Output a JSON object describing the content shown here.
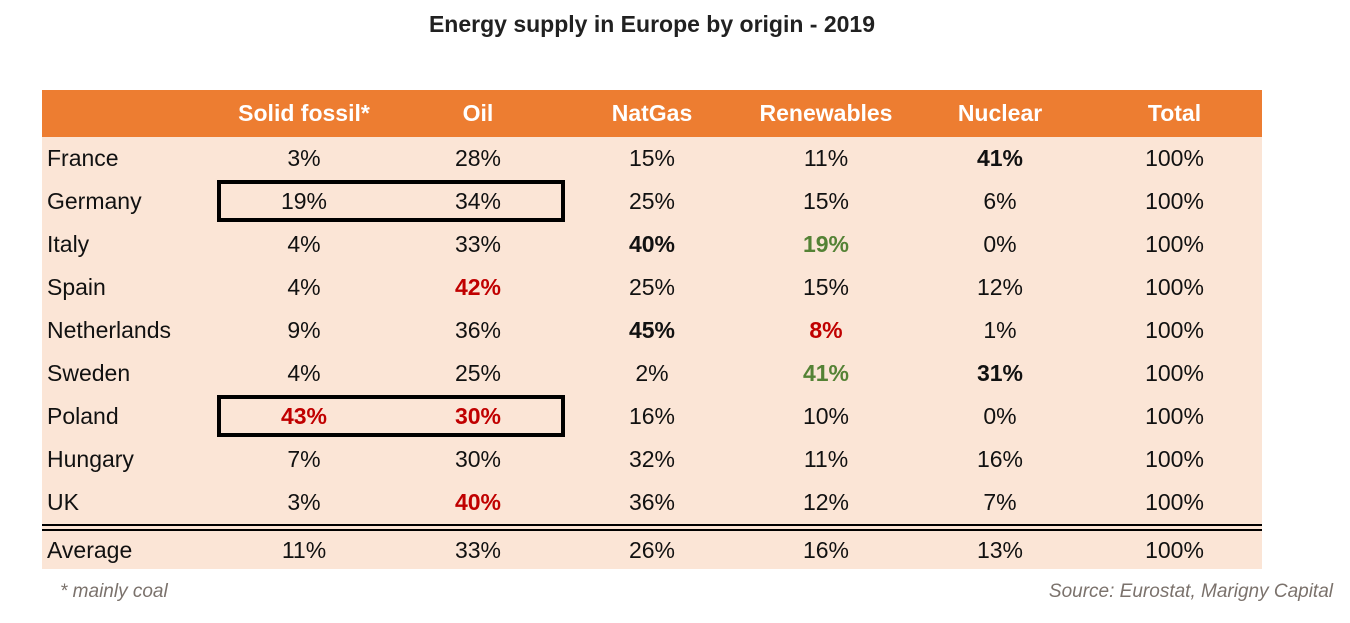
{
  "title": "Energy supply in Europe by origin - 2019",
  "chart_data": {
    "type": "table",
    "title": "Energy supply in Europe by origin - 2019",
    "unit": "%",
    "columns": [
      "Solid fossil*",
      "Oil",
      "NatGas",
      "Renewables",
      "Nuclear",
      "Total"
    ],
    "rows": [
      {
        "country": "France",
        "values": [
          3,
          28,
          15,
          11,
          41,
          100
        ],
        "emphasis": {
          "4": "bold-black"
        }
      },
      {
        "country": "Germany",
        "values": [
          19,
          34,
          25,
          15,
          6,
          100
        ],
        "emphasis": {}
      },
      {
        "country": "Italy",
        "values": [
          4,
          33,
          40,
          19,
          0,
          100
        ],
        "emphasis": {
          "2": "bold-black",
          "3": "bold-green"
        }
      },
      {
        "country": "Spain",
        "values": [
          4,
          42,
          25,
          15,
          12,
          100
        ],
        "emphasis": {
          "1": "bold-red"
        }
      },
      {
        "country": "Netherlands",
        "values": [
          9,
          36,
          45,
          8,
          1,
          100
        ],
        "emphasis": {
          "2": "bold-black",
          "3": "bold-red"
        }
      },
      {
        "country": "Sweden",
        "values": [
          4,
          25,
          2,
          41,
          31,
          100
        ],
        "emphasis": {
          "3": "bold-green",
          "4": "bold-black"
        }
      },
      {
        "country": "Poland",
        "values": [
          43,
          30,
          16,
          10,
          0,
          100
        ],
        "emphasis": {
          "0": "bold-red",
          "1": "bold-red"
        }
      },
      {
        "country": "Hungary",
        "values": [
          7,
          30,
          32,
          11,
          16,
          100
        ],
        "emphasis": {}
      },
      {
        "country": "UK",
        "values": [
          3,
          40,
          36,
          12,
          7,
          100
        ],
        "emphasis": {
          "1": "bold-red"
        }
      }
    ],
    "average_row": {
      "country": "Average",
      "values": [
        11,
        33,
        26,
        16,
        13,
        100
      ]
    },
    "highlight_boxes": [
      {
        "country": "Germany",
        "columns": [
          "Solid fossil*",
          "Oil"
        ]
      },
      {
        "country": "Poland",
        "columns": [
          "Solid fossil*",
          "Oil"
        ]
      }
    ],
    "legend_position": "none",
    "grid": false
  },
  "footnote": "* mainly coal",
  "source": "Source: Eurostat, Marigny Capital",
  "colors": {
    "header_bg": "#ED7D31",
    "header_text": "#FFFFFF",
    "row_bg": "#FBE5D6",
    "emphasis_red": "#C00000",
    "emphasis_green": "#548235",
    "title_text": "#212121",
    "footer_text": "#7B726C"
  }
}
